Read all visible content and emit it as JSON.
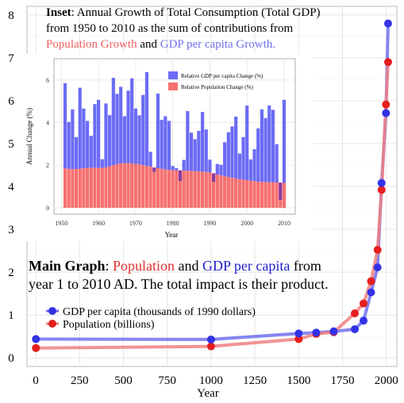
{
  "colors": {
    "gdp": "#3232e6",
    "gdp_line": "#7070f0",
    "pop": "#e61e1e",
    "pop_line": "#f08080",
    "pop_word": "#e03030",
    "gdp_word": "#2020cc",
    "inset_pop_word": "#f06060",
    "inset_gdp_word": "#7070f0",
    "inset_gdp_bar": "#6b6bf5",
    "inset_pop_bar": "#f77070",
    "inset_neg_bar": "#8b3aa0",
    "grid": "#e6e6e6"
  },
  "annotations": {
    "inset_title_bold": "Inset",
    "inset_title_rest": ": Annual Growth of Total Consumption (Total GDP)",
    "inset_line2": "from 1950 to 2010 as the sum of contributions from",
    "inset_pop": "Population Growth",
    "inset_and": " and ",
    "inset_gdp": "GDP per capita Growth.",
    "main_bold": "Main Graph",
    "main_colon": ": ",
    "main_pop": "Population",
    "main_and": " and ",
    "main_gdp": "GDP per capita",
    "main_from": " from",
    "main_line2": "year 1 to 2010 AD. The total impact is their product."
  },
  "chart_data": [
    {
      "type": "line",
      "xlabel": "Year",
      "ylabel": "",
      "xlim": [
        -50,
        2060
      ],
      "ylim": [
        -0.2,
        8.2
      ],
      "x_ticks": [
        0,
        250,
        500,
        750,
        1000,
        1250,
        1500,
        1750,
        2000
      ],
      "y_ticks": [
        0,
        1,
        2,
        3,
        4,
        5,
        6,
        7,
        8
      ],
      "grid": true,
      "legend_position": "left",
      "series": [
        {
          "name": "GDP per capita (thousands of 1990 dollars)",
          "x": [
            1,
            1000,
            1500,
            1600,
            1700,
            1820,
            1870,
            1913,
            1950,
            1973,
            1998,
            2010
          ],
          "y": [
            0.44,
            0.43,
            0.57,
            0.59,
            0.62,
            0.67,
            0.87,
            1.53,
            2.11,
            4.08,
            5.71,
            7.8
          ]
        },
        {
          "name": "Population (billions)",
          "x": [
            1,
            1000,
            1500,
            1600,
            1700,
            1820,
            1870,
            1913,
            1950,
            1973,
            1998,
            2010
          ],
          "y": [
            0.23,
            0.27,
            0.44,
            0.56,
            0.6,
            1.04,
            1.27,
            1.79,
            2.52,
            3.92,
            5.91,
            6.9
          ]
        }
      ]
    },
    {
      "type": "bar",
      "stacked": true,
      "xlabel": "Year",
      "ylabel": "Annual Change (%)",
      "xlim": [
        1948,
        2013
      ],
      "ylim": [
        -0.3,
        7.0
      ],
      "x_ticks": [
        1950,
        1960,
        1970,
        1980,
        1990,
        2000,
        2010
      ],
      "y_ticks": [
        0,
        2,
        4,
        6
      ],
      "legend_position": "top-right",
      "categories": [
        1951,
        1952,
        1953,
        1954,
        1955,
        1956,
        1957,
        1958,
        1959,
        1960,
        1961,
        1962,
        1963,
        1964,
        1965,
        1966,
        1967,
        1968,
        1969,
        1970,
        1971,
        1972,
        1973,
        1974,
        1975,
        1976,
        1977,
        1978,
        1979,
        1980,
        1981,
        1982,
        1983,
        1984,
        1985,
        1986,
        1987,
        1988,
        1989,
        1990,
        1991,
        1992,
        1993,
        1994,
        1995,
        1996,
        1997,
        1998,
        1999,
        2000,
        2001,
        2002,
        2003,
        2004,
        2005,
        2006,
        2007,
        2008,
        2009,
        2010
      ],
      "series": [
        {
          "name": "Relative Population Change (%)",
          "values": [
            1.85,
            1.83,
            1.82,
            1.82,
            1.84,
            1.86,
            1.88,
            1.88,
            1.87,
            1.87,
            1.88,
            1.9,
            1.95,
            2.0,
            2.05,
            2.08,
            2.1,
            2.1,
            2.08,
            2.06,
            2.04,
            2.0,
            1.97,
            1.93,
            1.89,
            1.86,
            1.83,
            1.8,
            1.78,
            1.76,
            1.76,
            1.76,
            1.75,
            1.74,
            1.73,
            1.72,
            1.71,
            1.7,
            1.68,
            1.66,
            1.62,
            1.56,
            1.52,
            1.48,
            1.45,
            1.42,
            1.38,
            1.35,
            1.32,
            1.3,
            1.27,
            1.25,
            1.23,
            1.22,
            1.21,
            1.2,
            1.2,
            1.19,
            1.18,
            1.17
          ]
        },
        {
          "name": "Relative GDP per capita Change (%)",
          "values": [
            4.0,
            2.2,
            2.8,
            1.5,
            3.8,
            2.8,
            2.2,
            1.5,
            3.0,
            3.2,
            0.4,
            3.0,
            2.4,
            4.1,
            3.3,
            3.6,
            2.2,
            3.4,
            4.0,
            2.6,
            2.3,
            3.3,
            4.4,
            0.7,
            -0.2,
            3.5,
            2.3,
            2.5,
            2.3,
            0.2,
            0.1,
            -0.5,
            0.5,
            2.8,
            1.8,
            1.5,
            1.9,
            2.8,
            2.0,
            0.6,
            -0.4,
            0.5,
            0.5,
            1.6,
            2.1,
            2.4,
            2.9,
            1.2,
            2.0,
            3.5,
            1.0,
            1.5,
            2.5,
            3.4,
            3.0,
            3.6,
            3.4,
            1.8,
            -0.8,
            3.9
          ]
        }
      ]
    }
  ]
}
